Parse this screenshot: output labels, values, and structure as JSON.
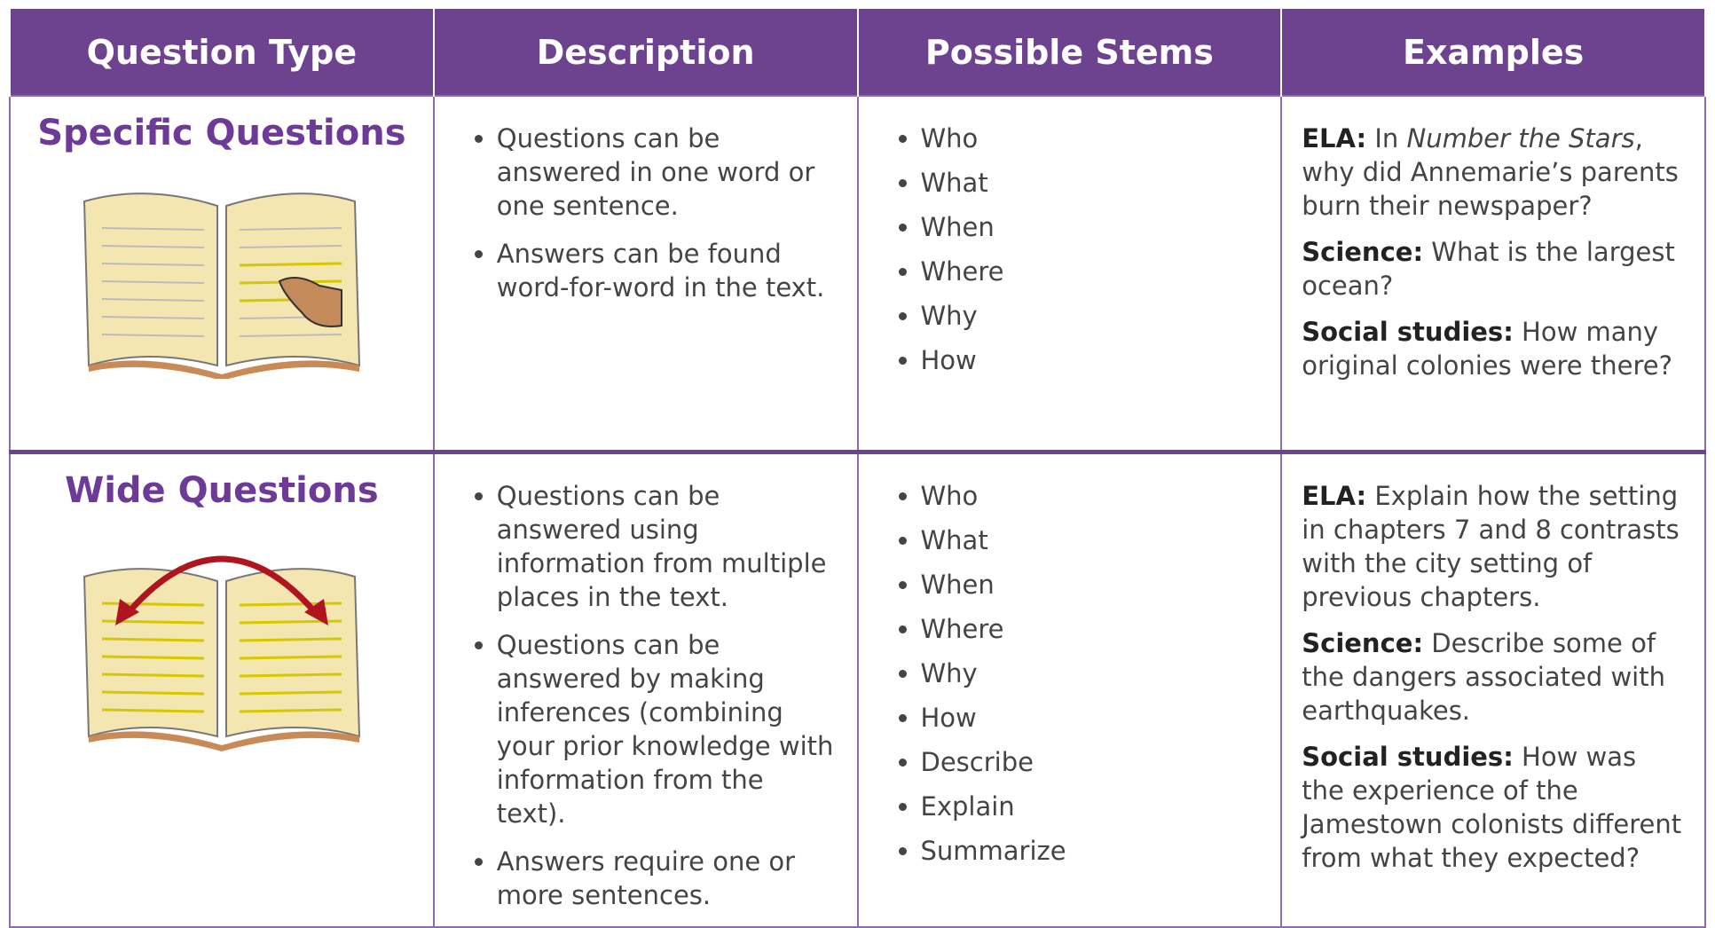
{
  "table": {
    "header": [
      "Question Type",
      "Description",
      "Possible Stems",
      "Examples"
    ],
    "rows": [
      {
        "type": "Specific Questions",
        "description": [
          "Questions can be answered in one word or one sentence.",
          "Answers can be found word-for-word in the text."
        ],
        "stems": [
          "Who",
          "What",
          "When",
          "Where",
          "Why",
          "How"
        ],
        "examples": [
          {
            "label": "ELA:",
            "text_before": "In ",
            "title": "Number the Stars",
            "text_after": ", why did Annemarie’s parents burn their newspaper?"
          },
          {
            "label": "Science:",
            "text": "What is the largest ocean?"
          },
          {
            "label": "Social studies:",
            "text": "How many original colonies were there?"
          }
        ]
      },
      {
        "type": "Wide Questions",
        "description": [
          "Questions can be answered using information from multiple places in the text.",
          "Questions can be answered by making inferences (combining your prior knowledge with information from the text).",
          "Answers require one or more sentences."
        ],
        "stems": [
          "Who",
          "What",
          "When",
          "Where",
          "Why",
          "How",
          "Describe",
          "Explain",
          "Summarize"
        ],
        "examples": [
          {
            "label": "ELA:",
            "text": "Explain how the setting in chapters 7 and 8 contrasts with the city setting of previous chapters."
          },
          {
            "label": "Science:",
            "text": "Describe some of the dangers associated with earthquakes."
          },
          {
            "label": "Social studies:",
            "text": "How was the experience of the Jamestown colonists different from what they expected?"
          }
        ]
      }
    ]
  }
}
